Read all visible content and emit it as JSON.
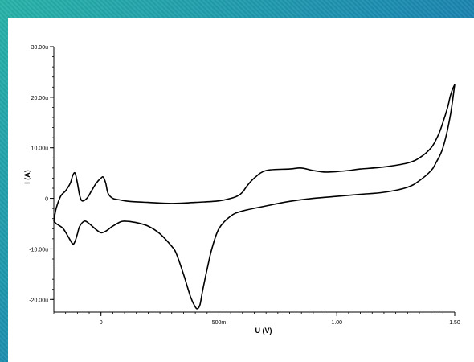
{
  "chart_data": {
    "type": "line",
    "title": "",
    "xlabel": "U (V)",
    "ylabel": "I (A)",
    "xlim": [
      -0.2,
      1.5
    ],
    "ylim": [
      -22.5,
      30
    ],
    "x_ticks": [
      {
        "value": 0,
        "label": "0"
      },
      {
        "value": 0.5,
        "label": "500m"
      },
      {
        "value": 1.0,
        "label": "1.00"
      },
      {
        "value": 1.5,
        "label": "1.50"
      }
    ],
    "y_ticks": [
      {
        "value": 30,
        "label": "30.00u"
      },
      {
        "value": 20,
        "label": "20.00u"
      },
      {
        "value": 10,
        "label": "10.00u"
      },
      {
        "value": 0,
        "label": "0"
      },
      {
        "value": -10,
        "label": "-10.00u"
      },
      {
        "value": -20,
        "label": "-20.00u"
      }
    ],
    "grid": false,
    "series": [
      {
        "color": "#000000",
        "x": [
          -0.2,
          -0.19,
          -0.17,
          -0.15,
          -0.13,
          -0.12,
          -0.11,
          -0.1,
          -0.09,
          -0.08,
          -0.06,
          -0.04,
          -0.02,
          0.0,
          0.01,
          0.02,
          0.03,
          0.05,
          0.08,
          0.12,
          0.2,
          0.3,
          0.4,
          0.5,
          0.55,
          0.58,
          0.6,
          0.62,
          0.65,
          0.7,
          0.8,
          0.85,
          0.9,
          0.95,
          1.0,
          1.05,
          1.1,
          1.2,
          1.3,
          1.35,
          1.4,
          1.43,
          1.45,
          1.47,
          1.48,
          1.49,
          1.5
        ],
        "y": [
          -4.5,
          -2.0,
          0.5,
          1.5,
          3.0,
          4.5,
          5.0,
          3.0,
          0.5,
          -0.5,
          0.0,
          1.5,
          3.0,
          4.0,
          4.2,
          3.0,
          1.0,
          0.0,
          -0.3,
          -0.6,
          -0.8,
          -1.0,
          -0.8,
          -0.5,
          0.0,
          0.5,
          1.2,
          2.5,
          4.0,
          5.5,
          5.8,
          6.0,
          5.5,
          5.2,
          5.3,
          5.5,
          5.8,
          6.2,
          7.0,
          8.0,
          10.0,
          12.5,
          15.0,
          18.0,
          20.0,
          21.5,
          22.5
        ]
      },
      {
        "color": "#000000",
        "x": [
          1.5,
          1.48,
          1.45,
          1.42,
          1.4,
          1.35,
          1.3,
          1.2,
          1.1,
          1.0,
          0.9,
          0.8,
          0.7,
          0.6,
          0.55,
          0.5,
          0.47,
          0.45,
          0.43,
          0.42,
          0.41,
          0.4,
          0.38,
          0.35,
          0.32,
          0.3,
          0.25,
          0.2,
          0.15,
          0.1,
          0.08,
          0.05,
          0.02,
          0.0,
          -0.02,
          -0.05,
          -0.07,
          -0.09,
          -0.1,
          -0.11,
          -0.12,
          -0.14,
          -0.16,
          -0.18,
          -0.19,
          -0.2
        ],
        "y": [
          22.5,
          16.0,
          10.0,
          7.0,
          5.5,
          3.5,
          2.2,
          1.2,
          0.8,
          0.4,
          0.0,
          -0.6,
          -1.5,
          -2.5,
          -3.5,
          -6.0,
          -10.0,
          -14.0,
          -18.5,
          -21.0,
          -21.8,
          -21.5,
          -19.5,
          -15.0,
          -11.0,
          -9.5,
          -7.0,
          -5.5,
          -4.8,
          -4.5,
          -4.7,
          -5.5,
          -6.5,
          -6.8,
          -6.2,
          -5.0,
          -4.5,
          -5.5,
          -7.0,
          -8.5,
          -9.0,
          -7.5,
          -6.0,
          -5.3,
          -5.0,
          -4.5
        ]
      }
    ]
  }
}
